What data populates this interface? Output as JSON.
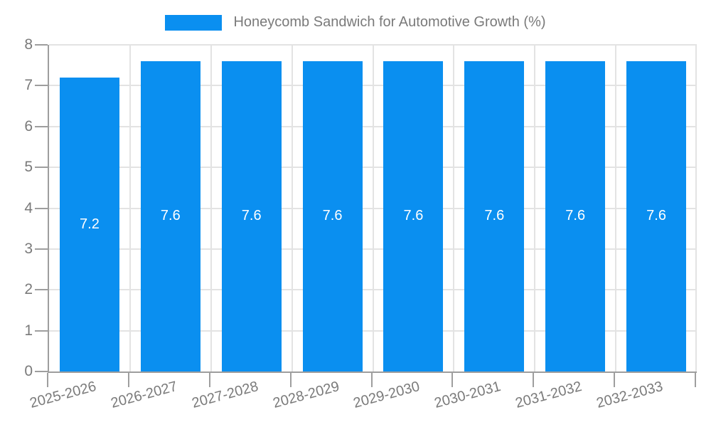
{
  "legend": {
    "label": "Honeycomb Sandwich for Automotive Growth (%)"
  },
  "chart_data": {
    "type": "bar",
    "title": "Honeycomb Sandwich for Automotive Growth (%)",
    "categories": [
      "2025-2026",
      "2026-2027",
      "2027-2028",
      "2028-2029",
      "2029-2030",
      "2030-2031",
      "2031-2032",
      "2032-2033"
    ],
    "values": [
      7.2,
      7.6,
      7.6,
      7.6,
      7.6,
      7.6,
      7.6,
      7.6
    ],
    "value_labels": [
      "7.2",
      "7.6",
      "7.6",
      "7.6",
      "7.6",
      "7.6",
      "7.6",
      "7.6"
    ],
    "xlabel": "",
    "ylabel": "",
    "ylim": [
      0,
      8
    ],
    "y_ticks": [
      0,
      1,
      2,
      3,
      4,
      5,
      6,
      7,
      8
    ],
    "grid": true,
    "legend_position": "top-center",
    "bar_color": "#0a8ff0",
    "value_label_color": "#ffffff",
    "background_color": "#ffffff",
    "axis_color": "#9e9e9e",
    "grid_color": "#e3e3e3",
    "tick_label_color": "#7a7a7a"
  }
}
